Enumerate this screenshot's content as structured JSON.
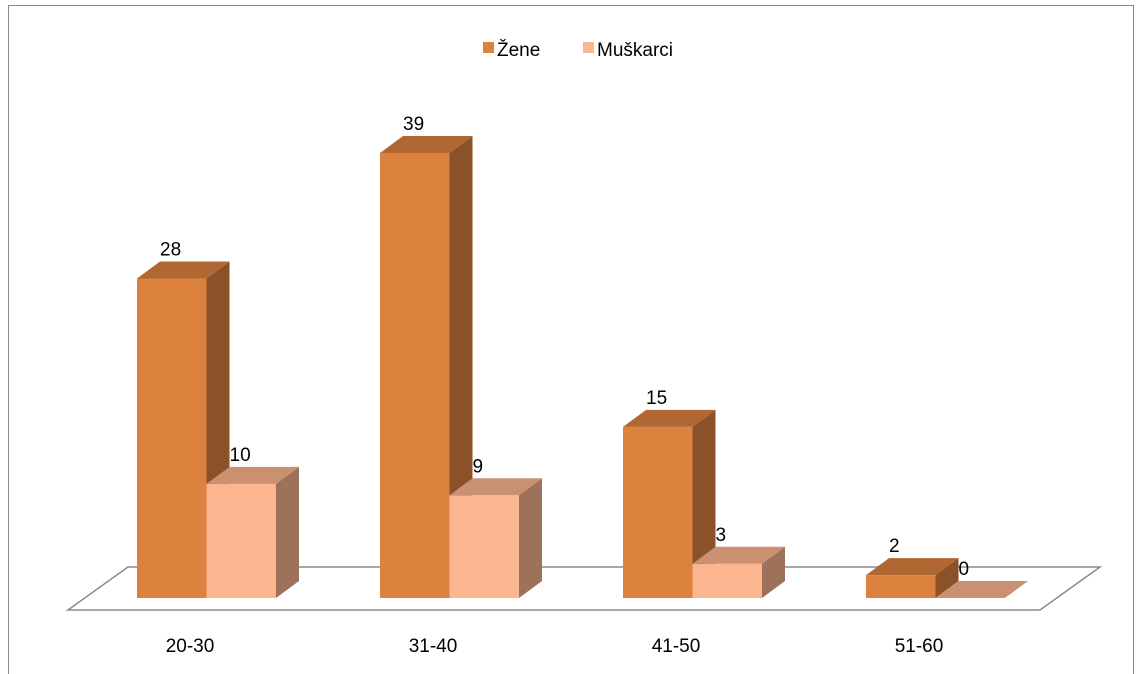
{
  "chart_data": {
    "type": "bar3d",
    "categories": [
      "20-30",
      "31-40",
      "41-50",
      "51-60"
    ],
    "series": [
      {
        "name": "Žene",
        "color": "#dd813f",
        "values": [
          28,
          39,
          15,
          2
        ]
      },
      {
        "name": "Muškarci",
        "color": "#fbb58f",
        "values": [
          10,
          9,
          3,
          0
        ]
      }
    ],
    "legend": "top"
  }
}
